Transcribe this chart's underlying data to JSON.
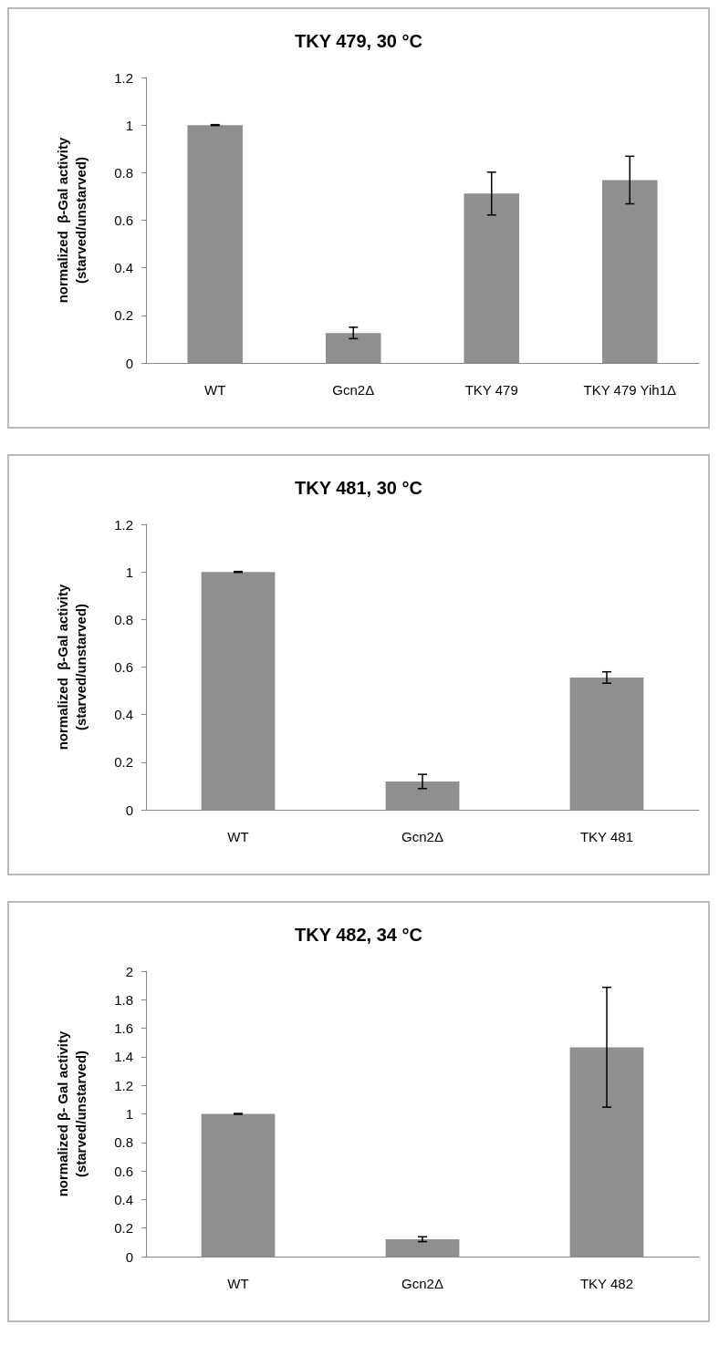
{
  "chart_data": [
    {
      "type": "bar",
      "title": "TKY 479, 30 °C",
      "ylabel": "normalized  β-Gal activity\n(starved/unstarved)",
      "categories": [
        "WT",
        "Gcn2Δ",
        "TKY 479",
        "TKY 479 Yih1Δ"
      ],
      "values": [
        1,
        0.126,
        0.712,
        0.769
      ],
      "errors": [
        0.002,
        0.024,
        0.09,
        0.1
      ],
      "color": "#8f8f8f",
      "ylim": [
        0,
        1.2
      ],
      "yticks": [
        0,
        0.2,
        0.4,
        0.6,
        0.8,
        1,
        1.2
      ],
      "grid": false
    },
    {
      "type": "bar",
      "title": "TKY 481, 30 °C",
      "ylabel": "normalized  β-Gal activity\n(starved/unstarved)",
      "categories": [
        "WT",
        "Gcn2Δ",
        "TKY 481"
      ],
      "values": [
        1,
        0.119,
        0.556
      ],
      "errors": [
        0.002,
        0.03,
        0.024
      ],
      "color": "#8f8f8f",
      "ylim": [
        0,
        1.2
      ],
      "yticks": [
        0,
        0.2,
        0.4,
        0.6,
        0.8,
        1,
        1.2
      ],
      "grid": false
    },
    {
      "type": "bar",
      "title": "TKY 482, 34 °C",
      "ylabel": "normalized β- Gal activity\n(starved/unstarved)",
      "categories": [
        "WT",
        "Gcn2Δ",
        "TKY 482"
      ],
      "values": [
        1,
        0.122,
        1.467
      ],
      "errors": [
        0.003,
        0.017,
        0.42
      ],
      "color": "#8f8f8f",
      "ylim": [
        0,
        2
      ],
      "yticks": [
        0,
        0.2,
        0.4,
        0.6,
        0.8,
        1,
        1.2,
        1.4,
        1.6,
        1.8,
        2
      ],
      "grid": false
    }
  ]
}
